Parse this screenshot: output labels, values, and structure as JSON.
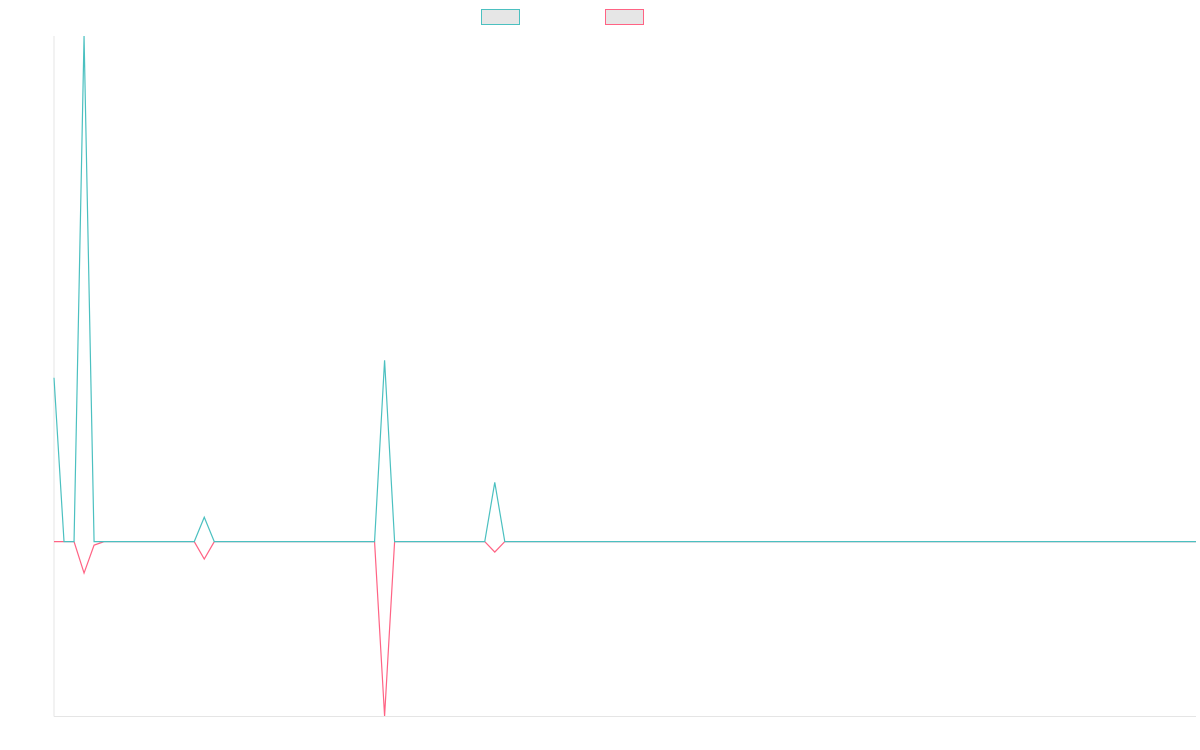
{
  "chart_data": {
    "type": "line",
    "title": "",
    "xlabel": "",
    "ylabel": "",
    "grid": false,
    "legend_position": "top-center",
    "x_count": 115,
    "ylim": [
      -50,
      145
    ],
    "series": [
      {
        "color": "#4bc0c0",
        "points": [
          [
            0,
            47
          ],
          [
            1,
            0
          ],
          [
            2,
            0
          ],
          [
            3,
            145
          ],
          [
            4,
            0
          ],
          [
            5,
            0
          ],
          [
            6,
            0
          ],
          [
            14,
            0
          ],
          [
            15,
            7
          ],
          [
            16,
            0
          ],
          [
            32,
            0
          ],
          [
            33,
            52
          ],
          [
            34,
            0
          ],
          [
            43,
            0
          ],
          [
            44,
            17
          ],
          [
            45,
            0
          ],
          [
            114,
            0
          ]
        ]
      },
      {
        "color": "#ff6384",
        "points": [
          [
            0,
            0
          ],
          [
            1,
            0
          ],
          [
            2,
            0
          ],
          [
            3,
            -9
          ],
          [
            4,
            -1
          ],
          [
            5,
            0
          ],
          [
            6,
            0
          ],
          [
            14,
            0
          ],
          [
            15,
            -5
          ],
          [
            16,
            0
          ],
          [
            32,
            0
          ],
          [
            33,
            -50
          ],
          [
            34,
            0
          ],
          [
            43,
            0
          ],
          [
            44,
            -3
          ],
          [
            45,
            0
          ],
          [
            114,
            0
          ]
        ]
      }
    ]
  }
}
